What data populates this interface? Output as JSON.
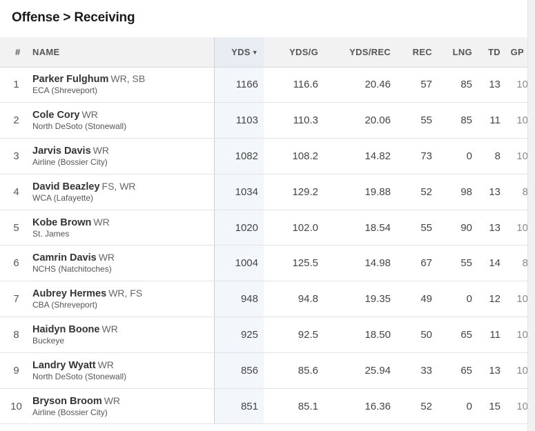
{
  "page": {
    "title": "Offense > Receiving"
  },
  "table": {
    "headers": {
      "rank": "#",
      "name": "NAME",
      "yds": "YDS",
      "yds_sort_indicator": "▼",
      "yds_per_game": "YDS/G",
      "yds_per_rec": "YDS/REC",
      "rec": "REC",
      "lng": "LNG",
      "td": "TD",
      "gp": "GP"
    },
    "rows": [
      {
        "rank": "1",
        "name": "Parker Fulghum",
        "pos": "WR, SB",
        "school": "ECA (Shreveport)",
        "yds": "1166",
        "ydsg": "116.6",
        "ydsrec": "20.46",
        "rec": "57",
        "lng": "85",
        "td": "13",
        "gp": "10"
      },
      {
        "rank": "2",
        "name": "Cole Cory",
        "pos": "WR",
        "school": "North DeSoto (Stonewall)",
        "yds": "1103",
        "ydsg": "110.3",
        "ydsrec": "20.06",
        "rec": "55",
        "lng": "85",
        "td": "11",
        "gp": "10"
      },
      {
        "rank": "3",
        "name": "Jarvis Davis",
        "pos": "WR",
        "school": "Airline (Bossier City)",
        "yds": "1082",
        "ydsg": "108.2",
        "ydsrec": "14.82",
        "rec": "73",
        "lng": "0",
        "td": "8",
        "gp": "10"
      },
      {
        "rank": "4",
        "name": "David Beazley",
        "pos": "FS, WR",
        "school": "WCA (Lafayette)",
        "yds": "1034",
        "ydsg": "129.2",
        "ydsrec": "19.88",
        "rec": "52",
        "lng": "98",
        "td": "13",
        "gp": "8"
      },
      {
        "rank": "5",
        "name": "Kobe Brown",
        "pos": "WR",
        "school": "St. James",
        "yds": "1020",
        "ydsg": "102.0",
        "ydsrec": "18.54",
        "rec": "55",
        "lng": "90",
        "td": "13",
        "gp": "10"
      },
      {
        "rank": "6",
        "name": "Camrin Davis",
        "pos": "WR",
        "school": "NCHS (Natchitoches)",
        "yds": "1004",
        "ydsg": "125.5",
        "ydsrec": "14.98",
        "rec": "67",
        "lng": "55",
        "td": "14",
        "gp": "8"
      },
      {
        "rank": "7",
        "name": "Aubrey Hermes",
        "pos": "WR, FS",
        "school": "CBA (Shreveport)",
        "yds": "948",
        "ydsg": "94.8",
        "ydsrec": "19.35",
        "rec": "49",
        "lng": "0",
        "td": "12",
        "gp": "10"
      },
      {
        "rank": "8",
        "name": "Haidyn Boone",
        "pos": "WR",
        "school": "Buckeye",
        "yds": "925",
        "ydsg": "92.5",
        "ydsrec": "18.50",
        "rec": "50",
        "lng": "65",
        "td": "11",
        "gp": "10"
      },
      {
        "rank": "9",
        "name": "Landry Wyatt",
        "pos": "WR",
        "school": "North DeSoto (Stonewall)",
        "yds": "856",
        "ydsg": "85.6",
        "ydsrec": "25.94",
        "rec": "33",
        "lng": "65",
        "td": "13",
        "gp": "10"
      },
      {
        "rank": "10",
        "name": "Bryson Broom",
        "pos": "WR",
        "school": "Airline (Bossier City)",
        "yds": "851",
        "ydsg": "85.1",
        "ydsrec": "16.36",
        "rec": "52",
        "lng": "0",
        "td": "15",
        "gp": "10"
      }
    ]
  }
}
